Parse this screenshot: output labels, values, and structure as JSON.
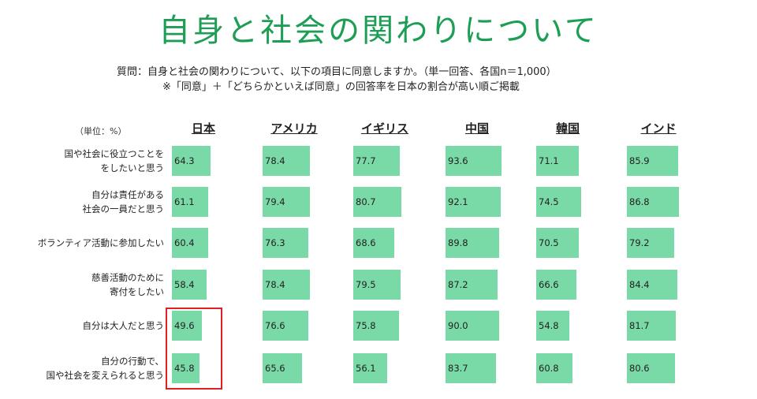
{
  "title": "自身と社会の関わりについて",
  "question_line1": "質問：自身と社会の関わりについて、以下の項目に同意しますか。（単一回答、各国n＝1,000）",
  "question_line2": "※「同意」＋「どちらかといえば同意」の回答率を日本の割合が高い順ご掲載",
  "unit": "（単位：%）",
  "colors": {
    "title": "#1e9e55",
    "bar": "#79d9a7",
    "highlight": "#e02020"
  },
  "chart_data": {
    "type": "table",
    "columns": [
      "日本",
      "アメリカ",
      "イギリス",
      "中国",
      "韓国",
      "インド"
    ],
    "rows": [
      {
        "label_lines": [
          "国や社会に役立つことを",
          "をしたいと思う"
        ],
        "values": [
          64.3,
          78.4,
          77.7,
          93.6,
          71.1,
          85.9
        ]
      },
      {
        "label_lines": [
          "自分は責任がある",
          "社会の一員だと思う"
        ],
        "values": [
          61.1,
          79.4,
          80.7,
          92.1,
          74.5,
          86.8
        ]
      },
      {
        "label_lines": [
          "ボランティア活動に参加したい"
        ],
        "values": [
          60.4,
          76.3,
          68.6,
          89.8,
          70.5,
          79.2
        ]
      },
      {
        "label_lines": [
          "慈善活動のために",
          "寄付をしたい"
        ],
        "values": [
          58.4,
          78.4,
          79.5,
          87.2,
          66.6,
          84.4
        ]
      },
      {
        "label_lines": [
          "自分は大人だと思う"
        ],
        "values": [
          49.6,
          76.6,
          75.8,
          90.0,
          54.8,
          81.7
        ]
      },
      {
        "label_lines": [
          "自分の行動で、",
          "国や社会を変えられると思う"
        ],
        "values": [
          45.8,
          65.6,
          56.1,
          83.7,
          60.8,
          80.6
        ]
      }
    ],
    "value_max": 100,
    "highlighted_rows": [
      4,
      5
    ],
    "highlighted_column": 0
  }
}
